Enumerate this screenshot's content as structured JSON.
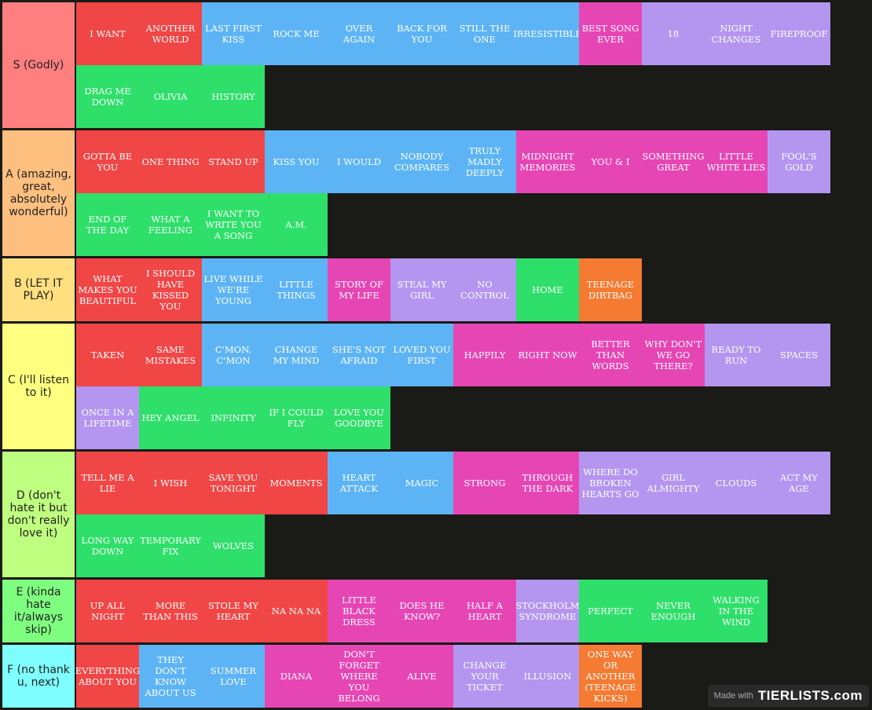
{
  "colors": {
    "red": "#f04646",
    "blue": "#5db4f5",
    "pink": "#e646b4",
    "purple": "#b496f0",
    "green": "#2ee06a",
    "orange": "#f57a32"
  },
  "tiers": [
    {
      "label": "S (Godly)",
      "color": "#ff7f7f",
      "items": [
        {
          "text": "I WANT",
          "c": "red"
        },
        {
          "text": "ANOTHER WORLD",
          "c": "red"
        },
        {
          "text": "LAST FIRST KISS",
          "c": "blue"
        },
        {
          "text": "ROCK ME",
          "c": "blue"
        },
        {
          "text": "OVER AGAIN",
          "c": "blue"
        },
        {
          "text": "BACK FOR YOU",
          "c": "blue"
        },
        {
          "text": "STILL THE ONE",
          "c": "blue"
        },
        {
          "text": "IRRESISTIBLE",
          "c": "blue"
        },
        {
          "text": "BEST SONG EVER",
          "c": "pink"
        },
        {
          "text": "18",
          "c": "purple"
        },
        {
          "text": "NIGHT CHANGES",
          "c": "purple"
        },
        {
          "text": "FIREPROOF",
          "c": "purple"
        },
        {
          "text": "DRAG ME DOWN",
          "c": "green"
        },
        {
          "text": "OLIVIA",
          "c": "green"
        },
        {
          "text": "HISTORY",
          "c": "green"
        }
      ]
    },
    {
      "label": "A (amazing, great, absolutely wonderful)",
      "color": "#ffbf7f",
      "items": [
        {
          "text": "GOTTA BE YOU",
          "c": "red"
        },
        {
          "text": "ONE THING",
          "c": "red"
        },
        {
          "text": "STAND UP",
          "c": "red"
        },
        {
          "text": "KISS YOU",
          "c": "blue"
        },
        {
          "text": "I WOULD",
          "c": "blue"
        },
        {
          "text": "NOBODY COMPARES",
          "c": "blue"
        },
        {
          "text": "TRULY MADLY DEEPLY",
          "c": "blue"
        },
        {
          "text": "MIDNIGHT MEMORIES",
          "c": "pink"
        },
        {
          "text": "YOU & I",
          "c": "pink"
        },
        {
          "text": "SOMETHING GREAT",
          "c": "pink"
        },
        {
          "text": "LITTLE WHITE LIES",
          "c": "pink"
        },
        {
          "text": "FOOL'S GOLD",
          "c": "purple"
        },
        {
          "text": "END OF THE DAY",
          "c": "green"
        },
        {
          "text": "WHAT A FEELING",
          "c": "green"
        },
        {
          "text": "I WANT TO WRITE YOU A SONG",
          "c": "green"
        },
        {
          "text": "A.M.",
          "c": "green"
        }
      ]
    },
    {
      "label": "B (LET IT PLAY)",
      "color": "#ffdf7f",
      "items": [
        {
          "text": "WHAT MAKES YOU BEAUTIFUL",
          "c": "red"
        },
        {
          "text": "I SHOULD HAVE KISSED YOU",
          "c": "red"
        },
        {
          "text": "LIVE WHILE WE'RE YOUNG",
          "c": "blue"
        },
        {
          "text": "LITTLE THINGS",
          "c": "blue"
        },
        {
          "text": "STORY OF MY LIFE",
          "c": "pink"
        },
        {
          "text": "STEAL MY GIRL",
          "c": "purple"
        },
        {
          "text": "NO CONTROL",
          "c": "purple"
        },
        {
          "text": "HOME",
          "c": "green"
        },
        {
          "text": "TEENAGE DIRTBAG",
          "c": "orange"
        }
      ]
    },
    {
      "label": "C (I'll listen to it)",
      "color": "#ffff7f",
      "items": [
        {
          "text": "TAKEN",
          "c": "red"
        },
        {
          "text": "SAME MISTAKES",
          "c": "red"
        },
        {
          "text": "C'MON, C'MON",
          "c": "blue"
        },
        {
          "text": "CHANGE MY MIND",
          "c": "blue"
        },
        {
          "text": "SHE'S NOT AFRAID",
          "c": "blue"
        },
        {
          "text": "LOVED YOU FIRST",
          "c": "blue"
        },
        {
          "text": "HAPPILY",
          "c": "pink"
        },
        {
          "text": "RIGHT NOW",
          "c": "pink"
        },
        {
          "text": "BETTER THAN WORDS",
          "c": "pink"
        },
        {
          "text": "WHY DON'T WE GO THERE?",
          "c": "pink"
        },
        {
          "text": "READY TO RUN",
          "c": "purple"
        },
        {
          "text": "SPACES",
          "c": "purple"
        },
        {
          "text": "ONCE IN A LIFETIME",
          "c": "purple"
        },
        {
          "text": "HEY ANGEL",
          "c": "green"
        },
        {
          "text": "INFINITY",
          "c": "green"
        },
        {
          "text": "IF I COULD FLY",
          "c": "green"
        },
        {
          "text": "LOVE YOU GOODBYE",
          "c": "green"
        }
      ]
    },
    {
      "label": "D (don't hate it but don't really love it)",
      "color": "#bfff7f",
      "items": [
        {
          "text": "TELL ME A LIE",
          "c": "red"
        },
        {
          "text": "I WISH",
          "c": "red"
        },
        {
          "text": "SAVE YOU TONIGHT",
          "c": "red"
        },
        {
          "text": "MOMENTS",
          "c": "red"
        },
        {
          "text": "HEART ATTACK",
          "c": "blue"
        },
        {
          "text": "MAGIC",
          "c": "blue"
        },
        {
          "text": "STRONG",
          "c": "pink"
        },
        {
          "text": "THROUGH THE DARK",
          "c": "pink"
        },
        {
          "text": "WHERE DO BROKEN HEARTS GO",
          "c": "purple"
        },
        {
          "text": "GIRL ALMIGHTY",
          "c": "purple"
        },
        {
          "text": "CLOUDS",
          "c": "purple"
        },
        {
          "text": "ACT MY AGE",
          "c": "purple"
        },
        {
          "text": "LONG WAY DOWN",
          "c": "green"
        },
        {
          "text": "TEMPORARY FIX",
          "c": "green"
        },
        {
          "text": "WOLVES",
          "c": "green"
        }
      ]
    },
    {
      "label": "E (kinda hate it/always skip)",
      "color": "#7fff7f",
      "items": [
        {
          "text": "UP ALL NIGHT",
          "c": "red"
        },
        {
          "text": "MORE THAN THIS",
          "c": "red"
        },
        {
          "text": "STOLE MY HEART",
          "c": "red"
        },
        {
          "text": "NA NA NA",
          "c": "red"
        },
        {
          "text": "LITTLE BLACK DRESS",
          "c": "pink"
        },
        {
          "text": "DOES HE KNOW?",
          "c": "pink"
        },
        {
          "text": "HALF A HEART",
          "c": "pink"
        },
        {
          "text": "STOCKHOLM SYNDROME",
          "c": "purple"
        },
        {
          "text": "PERFECT",
          "c": "green"
        },
        {
          "text": "NEVER ENOUGH",
          "c": "green"
        },
        {
          "text": "WALKING IN THE WIND",
          "c": "green"
        }
      ]
    },
    {
      "label": "F (no thank u, next)",
      "color": "#7fffff",
      "items": [
        {
          "text": "EVERYTHING ABOUT YOU",
          "c": "red"
        },
        {
          "text": "THEY DON'T KNOW ABOUT US",
          "c": "blue"
        },
        {
          "text": "SUMMER LOVE",
          "c": "blue"
        },
        {
          "text": "DIANA",
          "c": "pink"
        },
        {
          "text": "DON'T FORGET WHERE YOU BELONG",
          "c": "pink"
        },
        {
          "text": "ALIVE",
          "c": "pink"
        },
        {
          "text": "CHANGE YOUR TICKET",
          "c": "purple"
        },
        {
          "text": "ILLUSION",
          "c": "purple"
        },
        {
          "text": "ONE WAY OR ANOTHER (TEENAGE KICKS)",
          "c": "orange"
        }
      ]
    }
  ],
  "watermark": {
    "made_with": "Made with",
    "brand": "TIERLISTS.com"
  }
}
